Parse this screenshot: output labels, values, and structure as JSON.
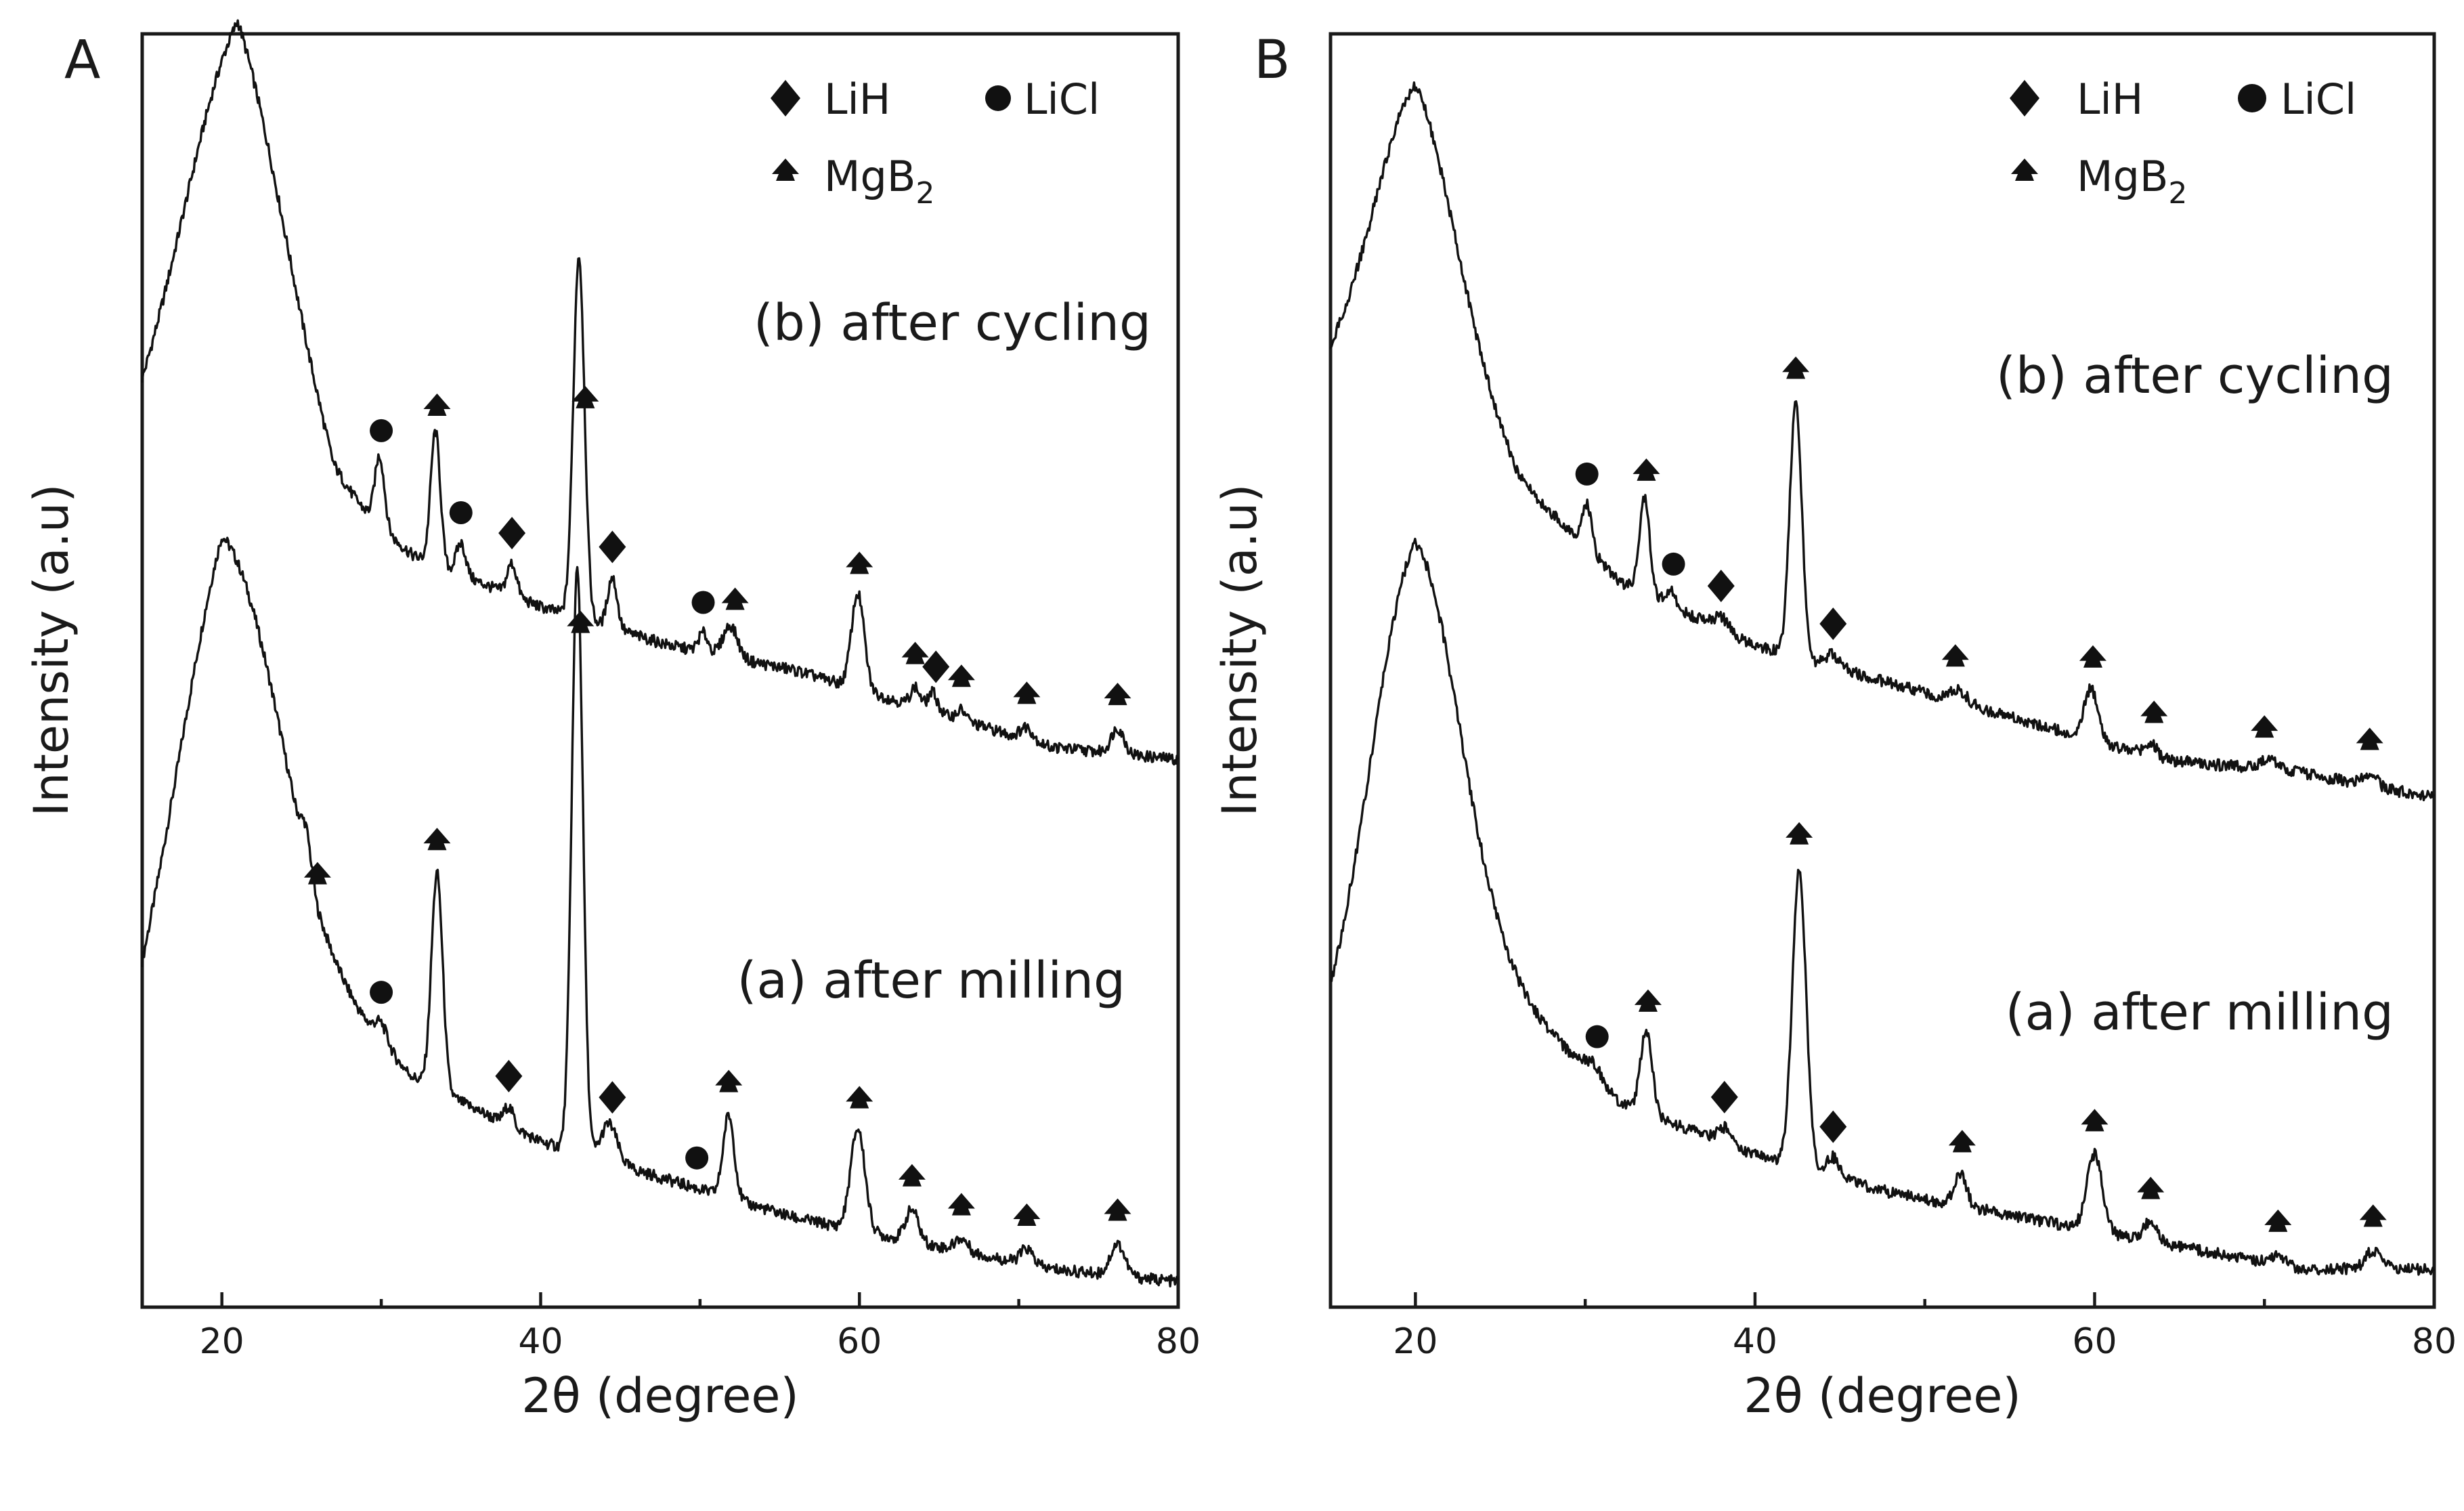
{
  "chart_data": [
    {
      "type": "line",
      "panel": "A",
      "xlabel": "2θ (degree)",
      "ylabel": "Intensity (a.u)",
      "xlim": [
        15,
        80
      ],
      "ylim": [
        0,
        100
      ],
      "xticks": [
        20,
        40,
        60,
        80
      ],
      "yticks_shown": false,
      "legend": {
        "placement": "top-right",
        "entries": [
          {
            "symbol": "diamond",
            "label": "LiH"
          },
          {
            "symbol": "circle",
            "label": "LiCl"
          },
          {
            "symbol": "spade",
            "label": "MgB",
            "sub": "2"
          }
        ]
      },
      "series": [
        {
          "name": "(a) after milling",
          "baseline": [
            [
              15,
              22
            ],
            [
              20,
              40
            ],
            [
              26,
              25
            ],
            [
              32,
              18
            ],
            [
              40,
              13
            ],
            [
              48,
              10
            ],
            [
              56,
              7
            ],
            [
              64,
              5
            ],
            [
              72,
              3
            ],
            [
              80,
              2
            ]
          ],
          "peaks": [
            {
              "x": 20.7,
              "h": 21,
              "w": 3.4
            },
            {
              "x": 25.3,
              "h": 2.5,
              "w": 0.3
            },
            {
              "x": 30.0,
              "h": 1.5,
              "w": 0.4
            },
            {
              "x": 33.5,
              "h": 17,
              "w": 0.35
            },
            {
              "x": 38.0,
              "h": 1.5,
              "w": 0.3
            },
            {
              "x": 42.3,
              "h": 46,
              "w": 0.35
            },
            {
              "x": 44.3,
              "h": 3,
              "w": 0.5
            },
            {
              "x": 51.8,
              "h": 6.5,
              "w": 0.35
            },
            {
              "x": 59.9,
              "h": 8,
              "w": 0.45
            },
            {
              "x": 63.3,
              "h": 2.5,
              "w": 0.4
            },
            {
              "x": 66.4,
              "h": 1,
              "w": 0.4
            },
            {
              "x": 70.5,
              "h": 1.2,
              "w": 0.4
            },
            {
              "x": 76.2,
              "h": 2.5,
              "w": 0.45
            }
          ],
          "markers": [
            {
              "x": 26.0,
              "symbol": "spade"
            },
            {
              "x": 30.0,
              "symbol": "circle"
            },
            {
              "x": 33.5,
              "symbol": "spade"
            },
            {
              "x": 38.0,
              "symbol": "diamond"
            },
            {
              "x": 42.5,
              "symbol": "spade"
            },
            {
              "x": 44.5,
              "symbol": "diamond"
            },
            {
              "x": 49.8,
              "symbol": "circle"
            },
            {
              "x": 51.8,
              "symbol": "spade"
            },
            {
              "x": 60.0,
              "symbol": "spade"
            },
            {
              "x": 63.3,
              "symbol": "spade"
            },
            {
              "x": 66.4,
              "symbol": "spade"
            },
            {
              "x": 70.5,
              "symbol": "spade"
            },
            {
              "x": 76.2,
              "symbol": "spade"
            }
          ]
        },
        {
          "name": "(b) after cycling",
          "baseline": [
            [
              15,
              70
            ],
            [
              21,
              86
            ],
            [
              27,
              64
            ],
            [
              32,
              59
            ],
            [
              40,
              55
            ],
            [
              48,
              52
            ],
            [
              56,
              50
            ],
            [
              64,
              47
            ],
            [
              72,
              44
            ],
            [
              80,
              43
            ]
          ],
          "peaks": [
            {
              "x": 20.8,
              "h": 15,
              "w": 3.2
            },
            {
              "x": 29.9,
              "h": 5.5,
              "w": 0.3
            },
            {
              "x": 33.4,
              "h": 10.5,
              "w": 0.3
            },
            {
              "x": 35.0,
              "h": 2.5,
              "w": 0.3
            },
            {
              "x": 38.2,
              "h": 2.5,
              "w": 0.3
            },
            {
              "x": 42.4,
              "h": 28.5,
              "w": 0.35
            },
            {
              "x": 44.5,
              "h": 4,
              "w": 0.3
            },
            {
              "x": 50.2,
              "h": 1.5,
              "w": 0.3
            },
            {
              "x": 51.9,
              "h": 2.5,
              "w": 0.45
            },
            {
              "x": 59.9,
              "h": 7.5,
              "w": 0.4
            },
            {
              "x": 63.5,
              "h": 1.5,
              "w": 0.3
            },
            {
              "x": 64.6,
              "h": 1.5,
              "w": 0.3
            },
            {
              "x": 66.4,
              "h": 0.8,
              "w": 0.3
            },
            {
              "x": 70.5,
              "h": 1,
              "w": 0.4
            },
            {
              "x": 76.2,
              "h": 2,
              "w": 0.4
            }
          ],
          "markers": [
            {
              "x": 30.0,
              "symbol": "circle"
            },
            {
              "x": 33.5,
              "symbol": "spade"
            },
            {
              "x": 35.0,
              "symbol": "circle"
            },
            {
              "x": 38.2,
              "symbol": "diamond"
            },
            {
              "x": 42.8,
              "symbol": "spade"
            },
            {
              "x": 44.5,
              "symbol": "diamond"
            },
            {
              "x": 50.2,
              "symbol": "circle"
            },
            {
              "x": 52.2,
              "symbol": "spade"
            },
            {
              "x": 60.0,
              "symbol": "spade"
            },
            {
              "x": 63.5,
              "symbol": "spade"
            },
            {
              "x": 64.8,
              "symbol": "diamond"
            },
            {
              "x": 66.4,
              "symbol": "spade"
            },
            {
              "x": 70.5,
              "symbol": "spade"
            },
            {
              "x": 76.2,
              "symbol": "spade"
            }
          ]
        }
      ]
    },
    {
      "type": "line",
      "panel": "B",
      "xlabel": "2θ (degree)",
      "ylabel": "Intensity (a.u)",
      "xlim": [
        15,
        80
      ],
      "ylim": [
        0,
        100
      ],
      "xticks": [
        20,
        40,
        60,
        80
      ],
      "yticks_shown": false,
      "legend": {
        "placement": "top-right",
        "entries": [
          {
            "symbol": "diamond",
            "label": "LiH"
          },
          {
            "symbol": "circle",
            "label": "LiCl"
          },
          {
            "symbol": "spade",
            "label": "MgB",
            "sub": "2"
          }
        ]
      },
      "series": [
        {
          "name": "(a) after milling",
          "baseline": [
            [
              15,
              21
            ],
            [
              20,
              32
            ],
            [
              26,
              24
            ],
            [
              32,
              16
            ],
            [
              40,
              12
            ],
            [
              48,
              9
            ],
            [
              56,
              7
            ],
            [
              64,
              5
            ],
            [
              72,
              3
            ],
            [
              80,
              3
            ]
          ],
          "peaks": [
            {
              "x": 20.0,
              "h": 28,
              "w": 2.6
            },
            {
              "x": 30.5,
              "h": 1.2,
              "w": 0.5
            },
            {
              "x": 33.6,
              "h": 6.5,
              "w": 0.35
            },
            {
              "x": 38.2,
              "h": 1.2,
              "w": 0.4
            },
            {
              "x": 42.6,
              "h": 23.5,
              "w": 0.4
            },
            {
              "x": 44.6,
              "h": 1.5,
              "w": 0.4
            },
            {
              "x": 52.1,
              "h": 2.5,
              "w": 0.35
            },
            {
              "x": 60.0,
              "h": 6,
              "w": 0.45
            },
            {
              "x": 63.3,
              "h": 1.5,
              "w": 0.4
            },
            {
              "x": 70.8,
              "h": 0.8,
              "w": 0.5
            },
            {
              "x": 76.4,
              "h": 1.5,
              "w": 0.45
            }
          ],
          "markers": [
            {
              "x": 30.7,
              "symbol": "circle"
            },
            {
              "x": 33.7,
              "symbol": "spade"
            },
            {
              "x": 38.2,
              "symbol": "diamond"
            },
            {
              "x": 42.6,
              "symbol": "spade"
            },
            {
              "x": 44.6,
              "symbol": "diamond"
            },
            {
              "x": 52.2,
              "symbol": "spade"
            },
            {
              "x": 60.0,
              "symbol": "spade"
            },
            {
              "x": 63.3,
              "symbol": "spade"
            },
            {
              "x": 70.8,
              "symbol": "spade"
            },
            {
              "x": 76.4,
              "symbol": "spade"
            }
          ]
        },
        {
          "name": "(b) after cycling",
          "baseline": [
            [
              15,
              74
            ],
            [
              20,
              82
            ],
            [
              26,
              65
            ],
            [
              32,
              57
            ],
            [
              40,
              52
            ],
            [
              48,
              49
            ],
            [
              56,
              46
            ],
            [
              64,
              43
            ],
            [
              72,
              42
            ],
            [
              80,
              40
            ]
          ],
          "peaks": [
            {
              "x": 20.0,
              "h": 14,
              "w": 2.4
            },
            {
              "x": 30.1,
              "h": 3.5,
              "w": 0.3
            },
            {
              "x": 33.5,
              "h": 7.5,
              "w": 0.3
            },
            {
              "x": 35.0,
              "h": 1.2,
              "w": 0.3
            },
            {
              "x": 38.0,
              "h": 1,
              "w": 0.4
            },
            {
              "x": 42.4,
              "h": 20,
              "w": 0.35
            },
            {
              "x": 44.6,
              "h": 1,
              "w": 0.4
            },
            {
              "x": 52.0,
              "h": 1,
              "w": 0.5
            },
            {
              "x": 59.8,
              "h": 4,
              "w": 0.4
            },
            {
              "x": 63.3,
              "h": 1,
              "w": 0.4
            },
            {
              "x": 70.3,
              "h": 0.8,
              "w": 0.5
            },
            {
              "x": 76.2,
              "h": 1,
              "w": 0.4
            }
          ],
          "markers": [
            {
              "x": 30.1,
              "symbol": "circle"
            },
            {
              "x": 33.6,
              "symbol": "spade"
            },
            {
              "x": 35.2,
              "symbol": "circle"
            },
            {
              "x": 38.0,
              "symbol": "diamond"
            },
            {
              "x": 42.4,
              "symbol": "spade"
            },
            {
              "x": 44.6,
              "symbol": "diamond"
            },
            {
              "x": 51.8,
              "symbol": "spade"
            },
            {
              "x": 59.9,
              "symbol": "spade"
            },
            {
              "x": 63.5,
              "symbol": "spade"
            },
            {
              "x": 70.0,
              "symbol": "spade"
            },
            {
              "x": 76.2,
              "symbol": "spade"
            }
          ]
        }
      ]
    }
  ]
}
